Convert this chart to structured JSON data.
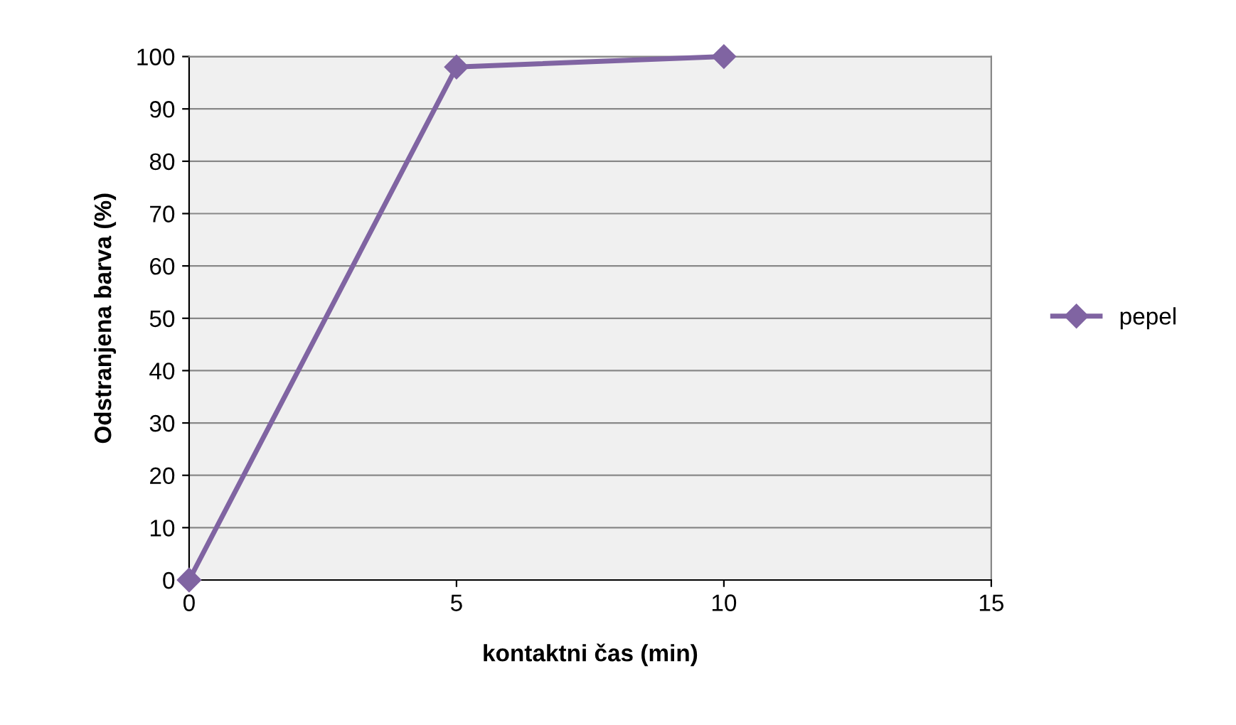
{
  "chart_data": {
    "type": "line",
    "xlabel": "kontaktni čas (min)",
    "ylabel": "Odstranjena barva (%)",
    "x": [
      0,
      5,
      10
    ],
    "series": [
      {
        "name": "pepel",
        "color": "#8064a2",
        "values": [
          0,
          98,
          100
        ]
      }
    ],
    "xlim": [
      0,
      15
    ],
    "xticks": [
      0,
      5,
      10,
      15
    ],
    "ylim": [
      0,
      100
    ],
    "yticks": [
      0,
      10,
      20,
      30,
      40,
      50,
      60,
      70,
      80,
      90,
      100
    ],
    "grid": "y",
    "legend": "right",
    "marker": "diamond",
    "line_style": "solid"
  }
}
